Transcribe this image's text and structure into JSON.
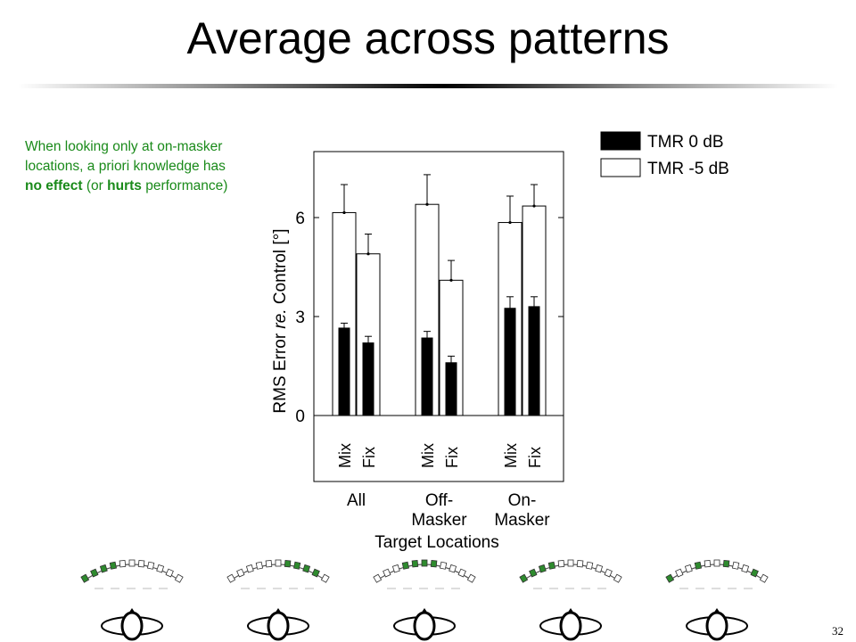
{
  "slide": {
    "title": "Average across patterns",
    "page_number": "32"
  },
  "note": {
    "part1": "When looking only at on-masker locations, a priori knowledge has ",
    "bold1": "no effect",
    "part2": " (or ",
    "bold2": "hurts",
    "part3": " performance)"
  },
  "colors": {
    "note_text": "#1a8a1a",
    "bar_tmr0": "#000000",
    "bar_tmr5": "#ffffff",
    "pattern_marker": "#2e8b2e"
  },
  "chart_data": {
    "type": "bar",
    "ylabel": {
      "main": "RMS Error ",
      "italic": "re.",
      "rest": " Control [°]"
    },
    "xlabel": "Target Locations",
    "ylim": [
      -2,
      8
    ],
    "yticks": [
      0,
      3,
      6
    ],
    "groups": [
      {
        "label_lines": [
          "All"
        ],
        "conditions": [
          "Mix",
          "Fix"
        ]
      },
      {
        "label_lines": [
          "Off-",
          "Masker"
        ],
        "conditions": [
          "Mix",
          "Fix"
        ]
      },
      {
        "label_lines": [
          "On-",
          "Masker"
        ],
        "conditions": [
          "Mix",
          "Fix"
        ]
      }
    ],
    "series": [
      {
        "name": "TMR 0 dB",
        "fill": "black",
        "values": [
          2.65,
          2.2,
          2.35,
          1.6,
          3.25,
          3.3
        ],
        "errors": [
          0.15,
          0.2,
          0.2,
          0.2,
          0.35,
          0.3
        ]
      },
      {
        "name": "TMR -5 dB",
        "fill": "white",
        "values": [
          6.15,
          4.9,
          6.4,
          4.1,
          5.85,
          6.35
        ],
        "errors": [
          0.85,
          0.6,
          0.9,
          0.6,
          0.8,
          0.65
        ]
      }
    ],
    "legend_position": "top-right"
  },
  "patterns": [
    {
      "highlight": [
        0,
        1,
        2,
        3
      ]
    },
    {
      "highlight": [
        6,
        7,
        8,
        9
      ]
    },
    {
      "highlight": [
        3,
        4,
        5,
        6
      ]
    },
    {
      "highlight": [
        0,
        1,
        2,
        3
      ]
    },
    {
      "highlight": [
        0,
        3,
        6,
        9
      ]
    }
  ]
}
